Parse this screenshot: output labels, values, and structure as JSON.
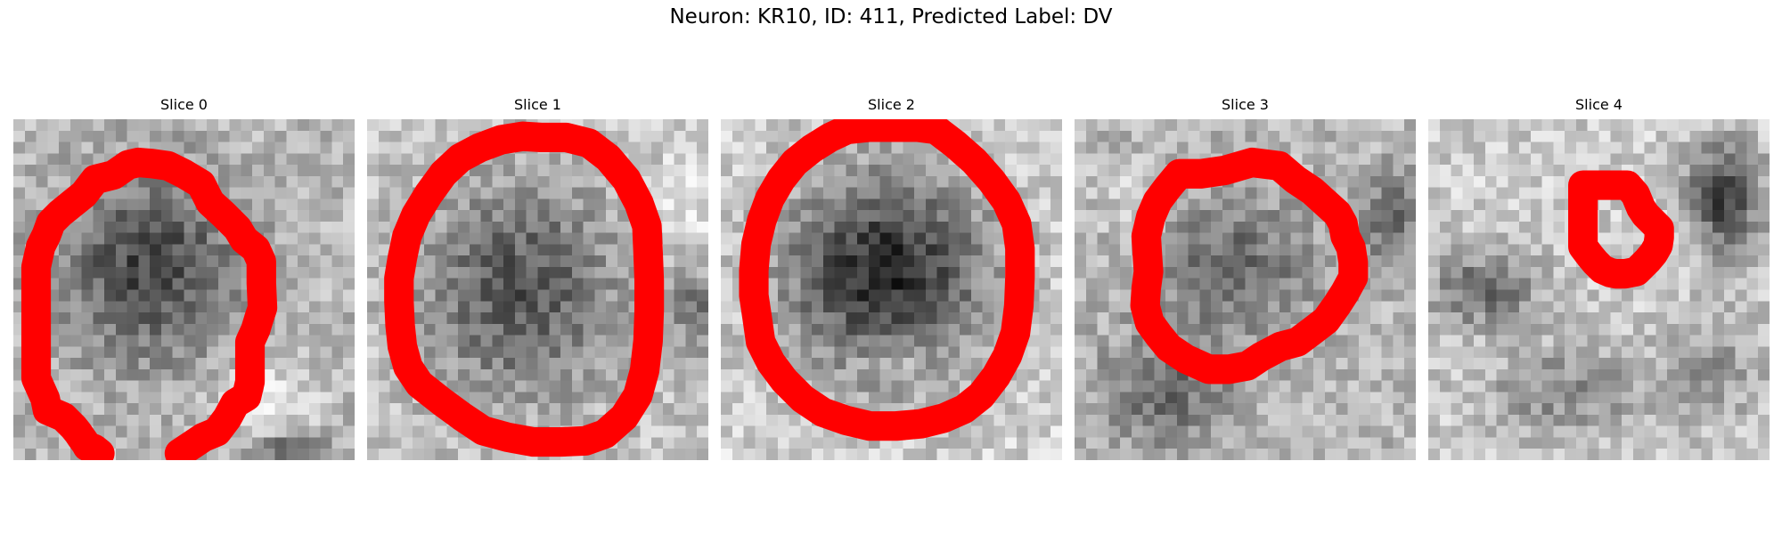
{
  "figure": {
    "title": "Neuron: KR10, ID: 411, Predicted Label: DV",
    "outline_color": "#ff0000",
    "colormap": "grayscale",
    "panels": [
      {
        "title": "Slice 0"
      },
      {
        "title": "Slice 1"
      },
      {
        "title": "Slice 2"
      },
      {
        "title": "Slice 3"
      },
      {
        "title": "Slice 4"
      }
    ]
  }
}
